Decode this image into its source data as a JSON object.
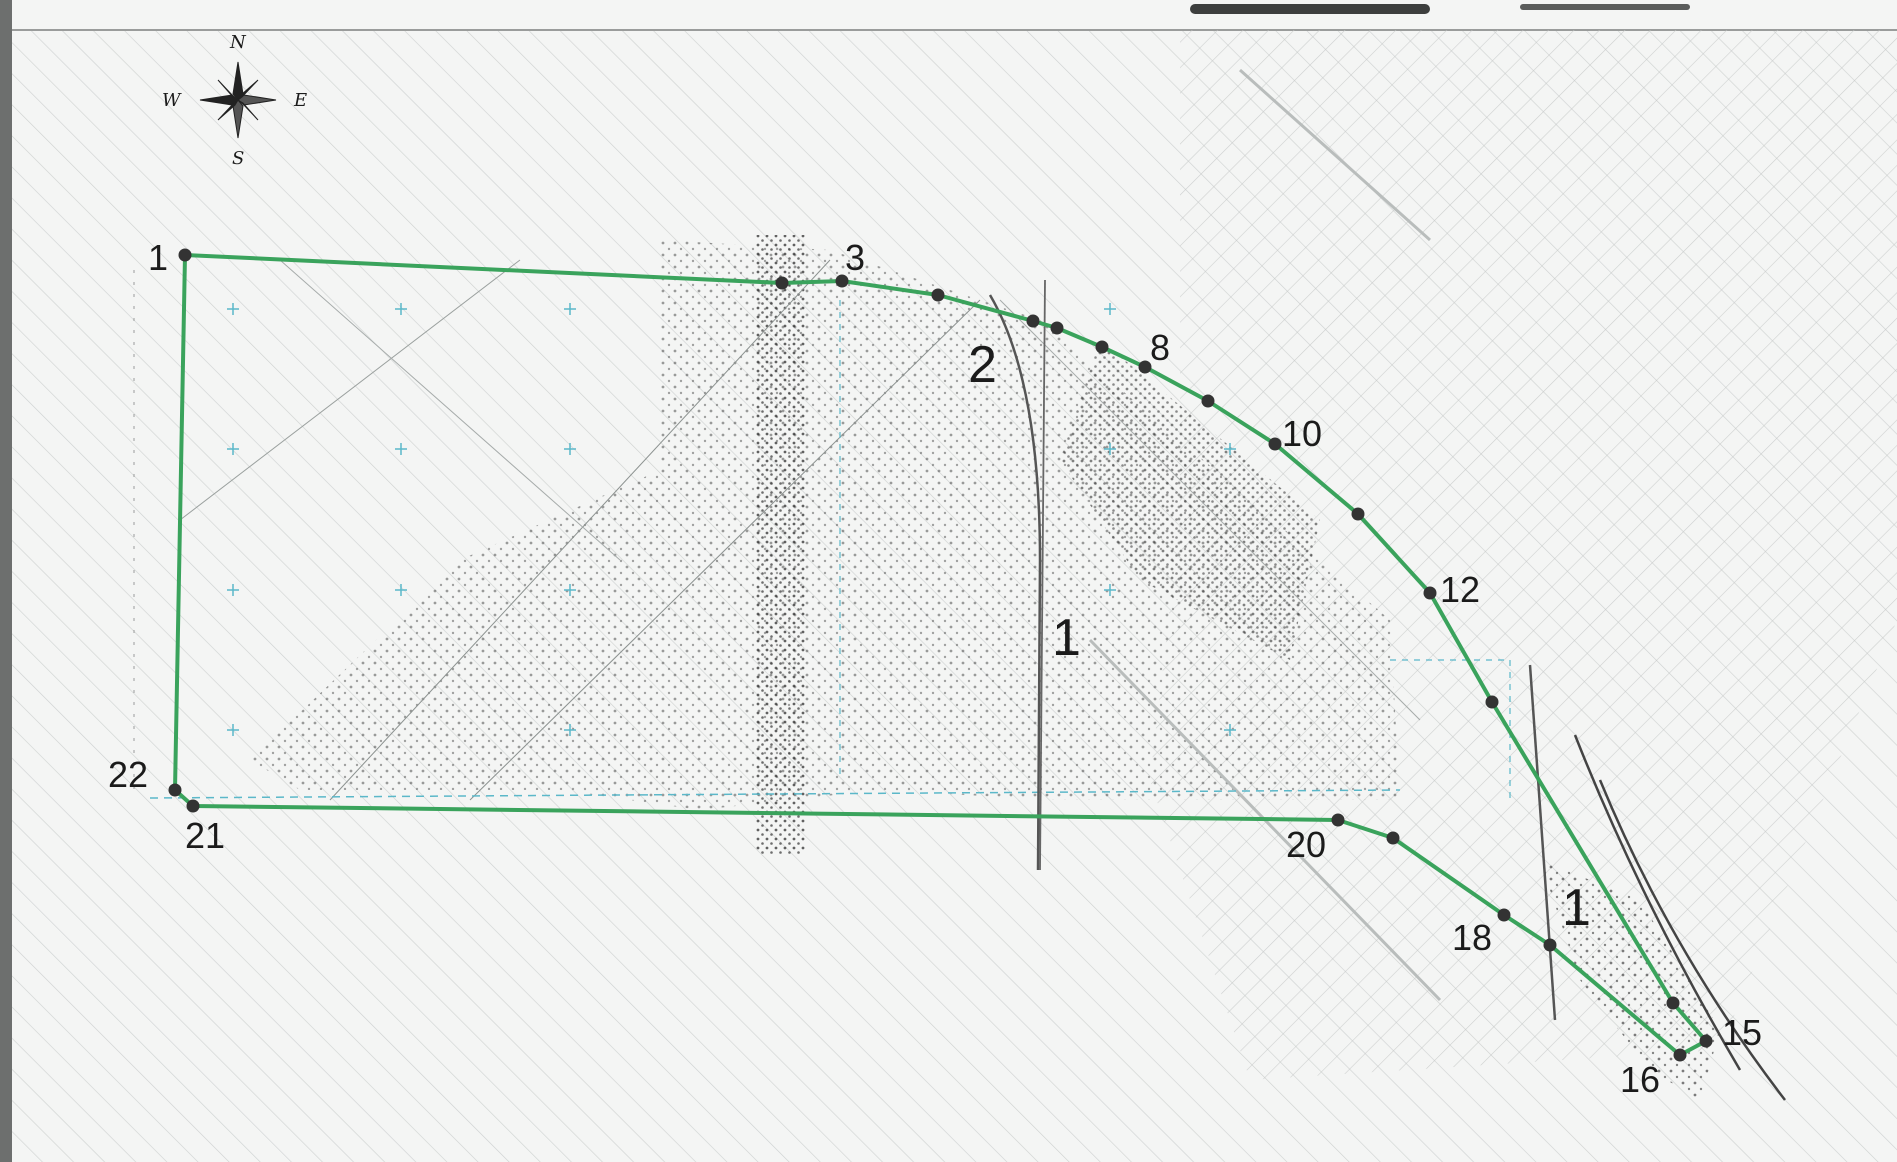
{
  "compass": {
    "north": "N",
    "south": "S",
    "east": "E",
    "west": "W"
  },
  "points": [
    {
      "id": 1,
      "label": "1"
    },
    {
      "id": 2,
      "label": ""
    },
    {
      "id": 3,
      "label": "3"
    },
    {
      "id": 4,
      "label": ""
    },
    {
      "id": 5,
      "label": ""
    },
    {
      "id": 6,
      "label": ""
    },
    {
      "id": 7,
      "label": ""
    },
    {
      "id": 8,
      "label": "8"
    },
    {
      "id": 9,
      "label": ""
    },
    {
      "id": 10,
      "label": "10"
    },
    {
      "id": 11,
      "label": ""
    },
    {
      "id": 12,
      "label": "12"
    },
    {
      "id": 13,
      "label": ""
    },
    {
      "id": 14,
      "label": ""
    },
    {
      "id": 15,
      "label": "15"
    },
    {
      "id": 16,
      "label": "16"
    },
    {
      "id": 17,
      "label": ""
    },
    {
      "id": 18,
      "label": "18"
    },
    {
      "id": 19,
      "label": ""
    },
    {
      "id": 20,
      "label": "20"
    },
    {
      "id": 21,
      "label": "21"
    },
    {
      "id": 22,
      "label": "22"
    }
  ],
  "zones": [
    {
      "label": "2"
    },
    {
      "label": "1"
    },
    {
      "label": "1"
    }
  ],
  "colors": {
    "boundary": "#3aa35c",
    "vertex": "#333333",
    "background": "#f4f5f4",
    "hatch": "#c9cccb",
    "cyan": "#5bb8c9"
  }
}
